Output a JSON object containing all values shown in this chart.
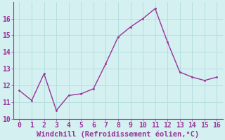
{
  "x": [
    0,
    1,
    2,
    3,
    4,
    5,
    6,
    7,
    8,
    9,
    10,
    11,
    12,
    13,
    14,
    15,
    16
  ],
  "y": [
    11.7,
    11.1,
    12.7,
    10.5,
    11.4,
    11.5,
    11.8,
    13.3,
    14.9,
    15.5,
    16.0,
    16.6,
    14.6,
    12.8,
    12.5,
    12.3,
    12.5
  ],
  "line_color": "#993399",
  "marker_color": "#993399",
  "bg_color": "#d4f0f0",
  "grid_color": "#b0dede",
  "xlabel": "Windchill (Refroidissement éolien,°C)",
  "xlabel_color": "#993399",
  "tick_color": "#993399",
  "spine_color": "#993399",
  "ylim": [
    10,
    17
  ],
  "xlim": [
    -0.5,
    16.5
  ],
  "yticks": [
    10,
    11,
    12,
    13,
    14,
    15,
    16
  ],
  "xticks": [
    0,
    1,
    2,
    3,
    4,
    5,
    6,
    7,
    8,
    9,
    10,
    11,
    12,
    13,
    14,
    15,
    16
  ],
  "marker_size": 3,
  "line_width": 1.0,
  "font_size": 7,
  "xlabel_fontsize": 7.5
}
